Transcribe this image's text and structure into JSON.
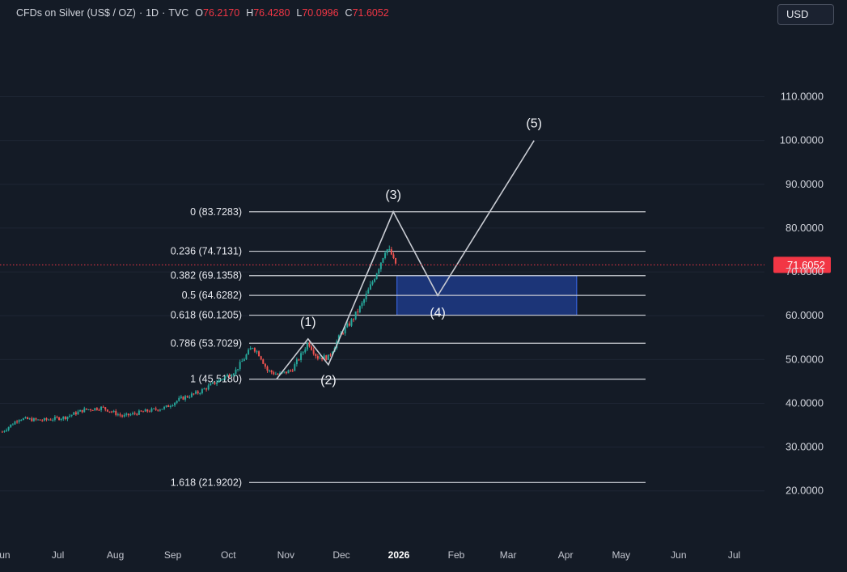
{
  "header": {
    "symbol": "CFDs on Silver (US$ / OZ)",
    "interval": "1D",
    "source": "TVC",
    "o_label": "O",
    "o_value": "76.2170",
    "h_label": "H",
    "h_value": "76.4280",
    "l_label": "L",
    "l_value": "70.0996",
    "c_label": "C",
    "c_value": "71.6052"
  },
  "currency_button": "USD",
  "colors": {
    "background": "#141b26",
    "up": "#26a69a",
    "down": "#ef5350",
    "price_line": "#f23645",
    "fib_line": "#c9ccd3",
    "wave_line": "#c9ccd3",
    "target_box": "#2962ff"
  },
  "chart_data": {
    "type": "candlestick",
    "x_axis_labels": [
      "Jun",
      "Jul",
      "Aug",
      "Sep",
      "Oct",
      "Nov",
      "Dec",
      "2026",
      "Feb",
      "Mar",
      "Apr",
      "May",
      "Jun",
      "Jul"
    ],
    "y_axis_ticks": [
      "110.0000",
      "100.0000",
      "90.0000",
      "80.0000",
      "70.0000",
      "60.0000",
      "50.0000",
      "40.0000",
      "30.0000",
      "20.0000"
    ],
    "ylim": [
      15.7,
      121
    ],
    "current_price": "71.6052",
    "price_path": [
      [
        "2025-06-01",
        33.5
      ],
      [
        "2025-06-10",
        36.5
      ],
      [
        "2025-06-22",
        36.1
      ],
      [
        "2025-07-05",
        36.8
      ],
      [
        "2025-07-15",
        38.5
      ],
      [
        "2025-07-25",
        39.0
      ],
      [
        "2025-08-05",
        37.0
      ],
      [
        "2025-08-15",
        38.0
      ],
      [
        "2025-08-28",
        39.0
      ],
      [
        "2025-09-05",
        41.0
      ],
      [
        "2025-09-15",
        42.5
      ],
      [
        "2025-09-25",
        45.0
      ],
      [
        "2025-10-05",
        47.5
      ],
      [
        "2025-10-14",
        53.0
      ],
      [
        "2025-10-18",
        51.0
      ],
      [
        "2025-10-22",
        47.5
      ],
      [
        "2025-10-28",
        46.5
      ],
      [
        "2025-11-04",
        47.5
      ],
      [
        "2025-11-10",
        51.5
      ],
      [
        "2025-11-13",
        54.0
      ],
      [
        "2025-11-18",
        50.5
      ],
      [
        "2025-11-24",
        50.5
      ],
      [
        "2025-12-01",
        56.0
      ],
      [
        "2025-12-06",
        58.5
      ],
      [
        "2025-12-12",
        62.5
      ],
      [
        "2025-12-17",
        67.0
      ],
      [
        "2025-12-22",
        72.0
      ],
      [
        "2025-12-25",
        75.5
      ],
      [
        "2025-12-28",
        74.0
      ],
      [
        "2025-12-29",
        72.5
      ],
      [
        "2025-12-31",
        71.6
      ]
    ],
    "fibonacci_levels": [
      {
        "label": "0 (83.7283)",
        "value": 83.7283
      },
      {
        "label": "0.236 (74.7131)",
        "value": 74.7131
      },
      {
        "label": "0.382 (69.1358)",
        "value": 69.1358
      },
      {
        "label": "0.5 (64.6282)",
        "value": 64.6282
      },
      {
        "label": "0.618 (60.1205)",
        "value": 60.1205
      },
      {
        "label": "0.786 (53.7029)",
        "value": 53.7029
      },
      {
        "label": "1 (45.5180)",
        "value": 45.518
      },
      {
        "label": "1.618 (21.9202)",
        "value": 21.9202
      }
    ],
    "elliott_waves": [
      {
        "label": "",
        "date": "2025-10-27",
        "value": 45.518
      },
      {
        "label": "(1)",
        "date": "2025-11-13",
        "value": 54.7
      },
      {
        "label": "(2)",
        "date": "2025-11-24",
        "value": 48.8
      },
      {
        "label": "(3)",
        "date": "2025-12-29",
        "value": 83.7283
      },
      {
        "label": "(4)",
        "date": "2026-01-22",
        "value": 64.6
      },
      {
        "label": "(5)",
        "date": "2026-03-15",
        "value": 100.0
      }
    ],
    "target_zone": {
      "date_start": "2025-12-31",
      "date_end": "2026-04-07",
      "high": 69.1358,
      "low": 60.1205
    }
  }
}
